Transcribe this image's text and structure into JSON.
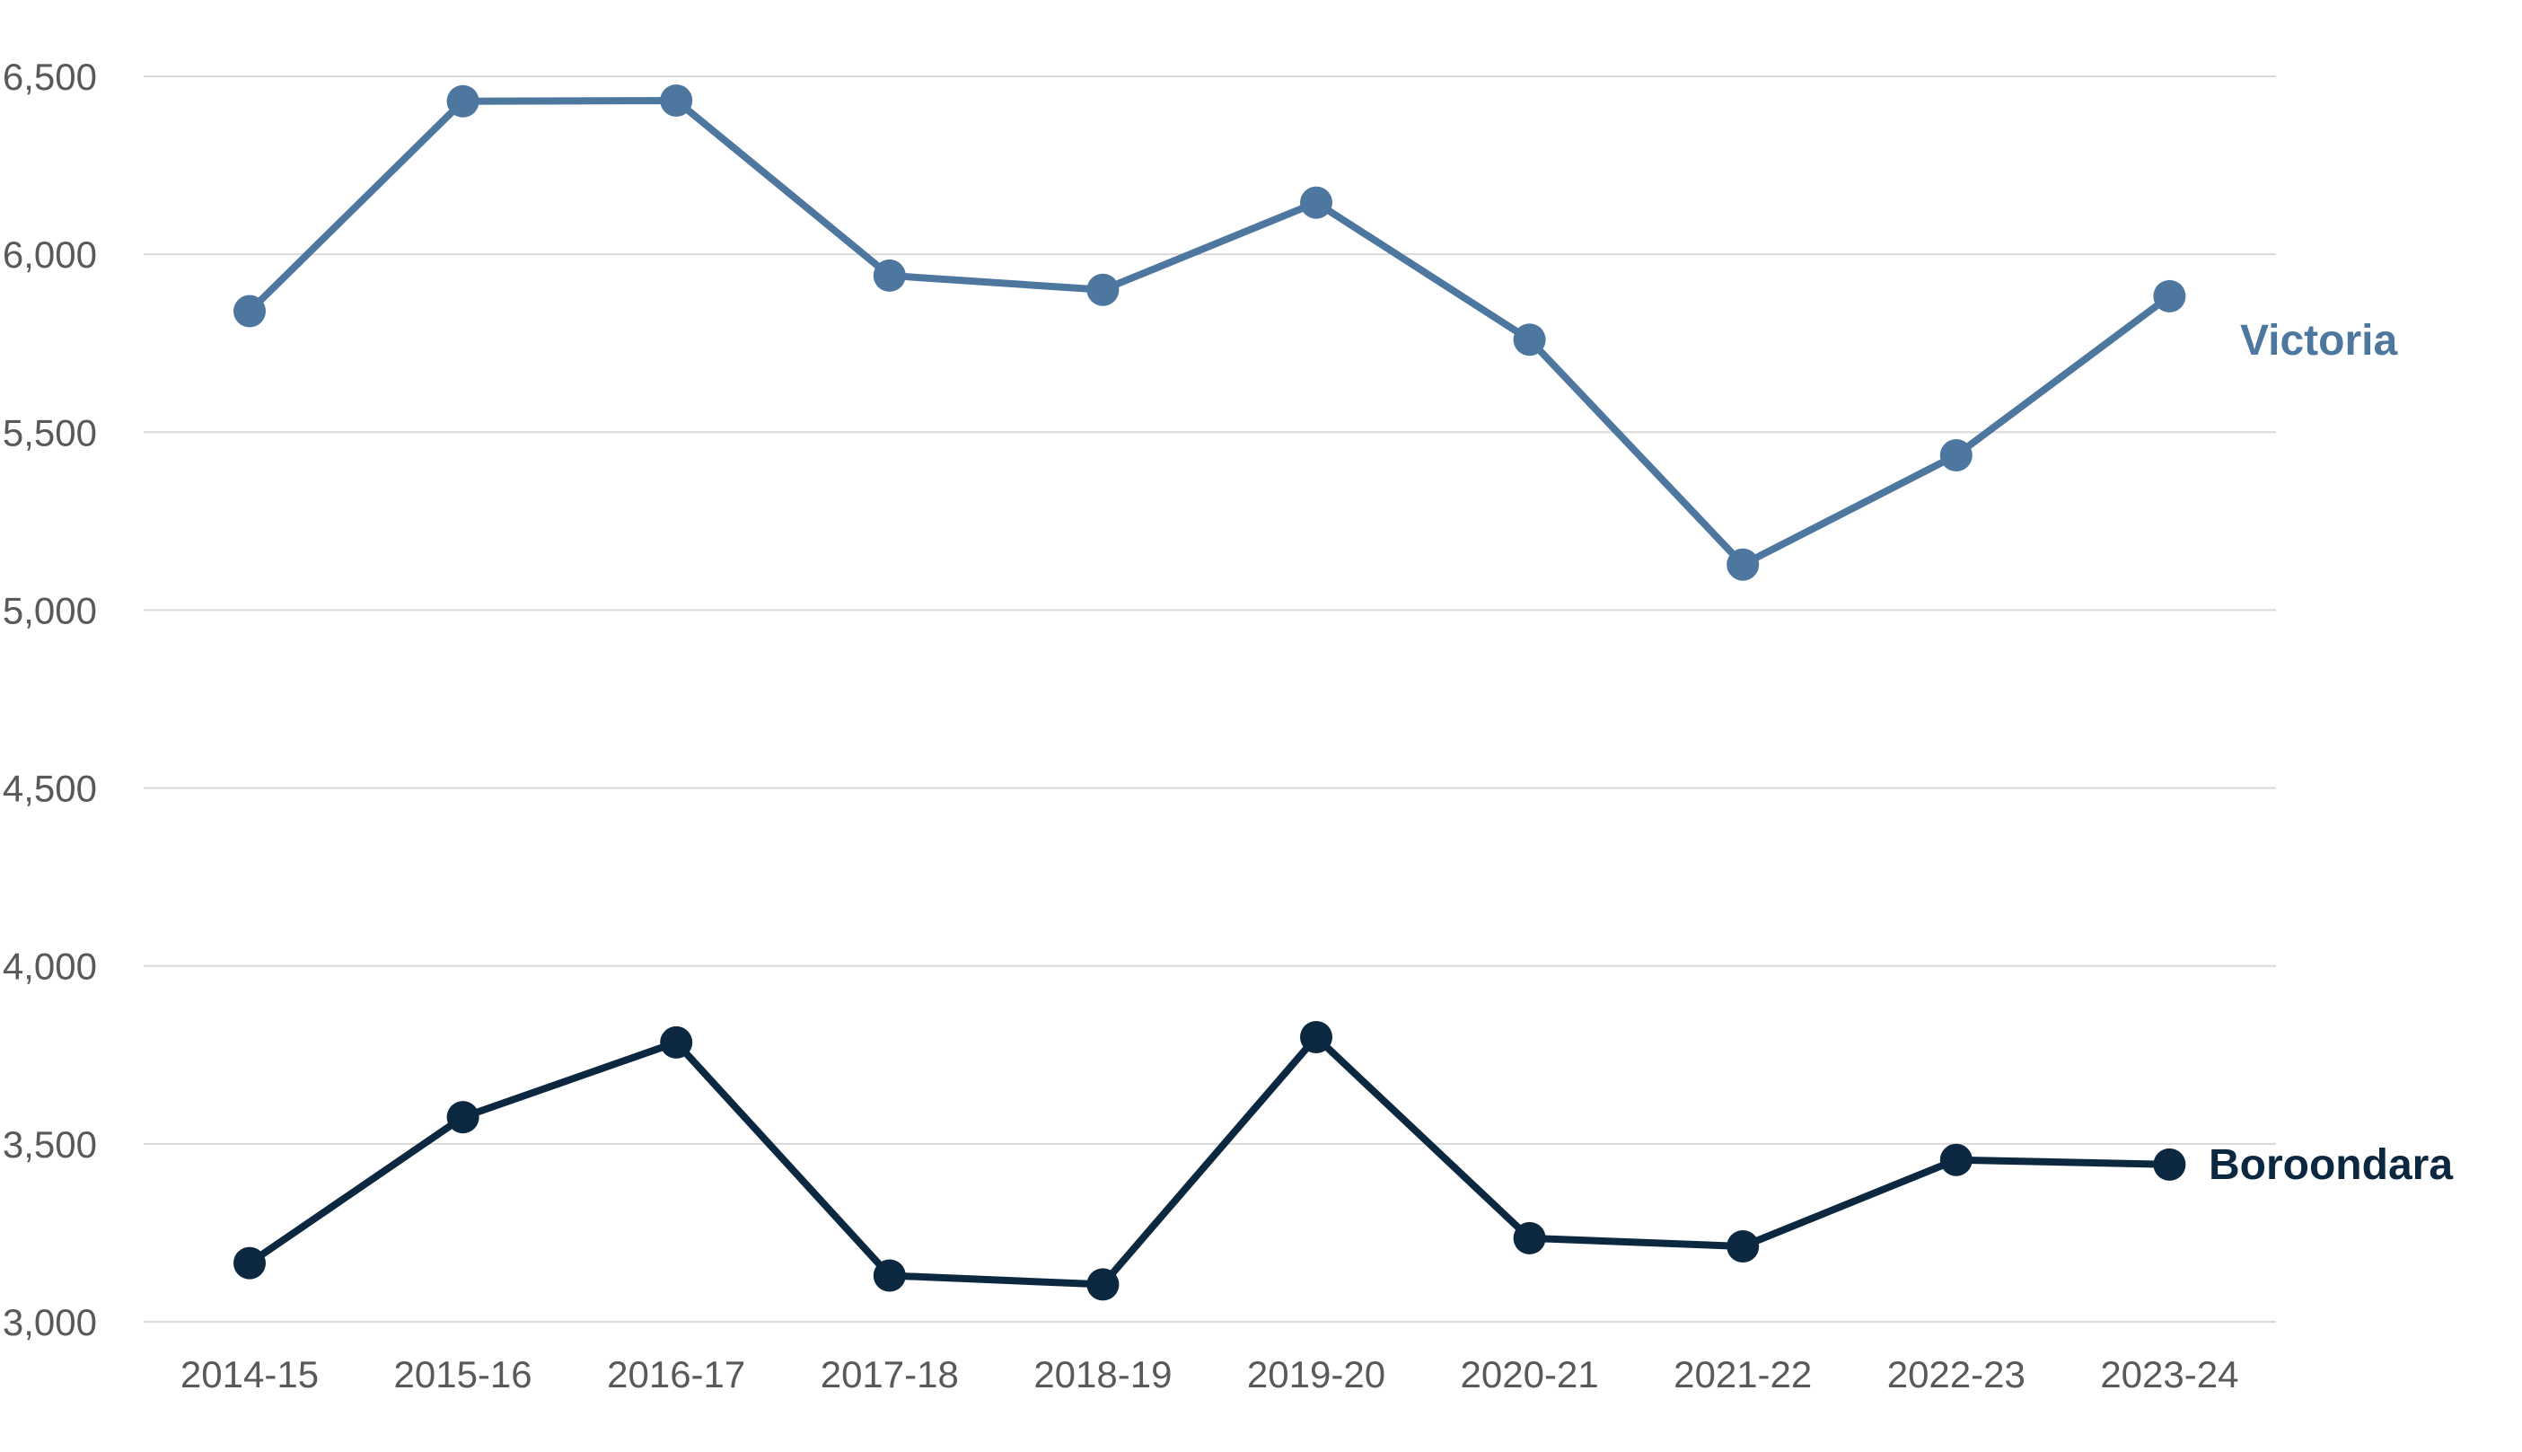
{
  "chart_data": {
    "type": "line",
    "title": "",
    "xlabel": "",
    "ylabel": "",
    "categories": [
      "2014-15",
      "2015-16",
      "2016-17",
      "2017-18",
      "2018-19",
      "2019-20",
      "2020-21",
      "2021-22",
      "2022-23",
      "2023-24"
    ],
    "ylim": [
      3000,
      6500
    ],
    "yticks": [
      3000,
      3500,
      4000,
      4500,
      5000,
      5500,
      6000,
      6500
    ],
    "ytick_labels": [
      "3,000",
      "3,500",
      "4,000",
      "4,500",
      "5,000",
      "5,500",
      "6,000",
      "6,500"
    ],
    "grid": true,
    "legend": "direct labels at right end of each series",
    "series": [
      {
        "name": "Victoria",
        "color": "#4e77a0",
        "values": [
          5840,
          6430,
          6432,
          5940,
          5900,
          6145,
          5760,
          5128,
          5435,
          5882
        ]
      },
      {
        "name": "Boroondara",
        "color": "#0c2840",
        "values": [
          3165,
          3575,
          3785,
          3130,
          3105,
          3800,
          3235,
          3212,
          3455,
          3442
        ]
      }
    ]
  }
}
